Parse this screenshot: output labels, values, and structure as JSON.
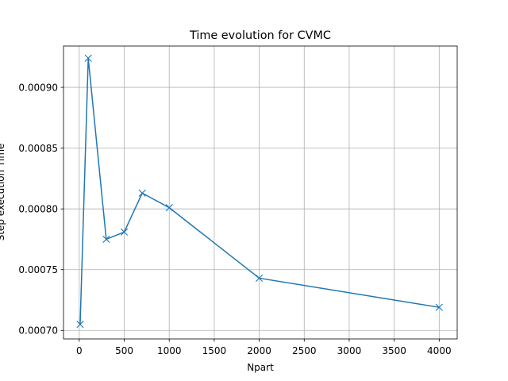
{
  "chart_data": {
    "type": "line",
    "title": "Time evolution for CVMC",
    "xlabel": "Npart",
    "ylabel": "Step execution Time",
    "xlim": [
      -175,
      4200
    ],
    "ylim": [
      0.000693,
      0.000934
    ],
    "xticks": [
      0,
      500,
      1000,
      1500,
      2000,
      2500,
      3000,
      3500,
      4000
    ],
    "xtick_labels": [
      "0",
      "500",
      "1000",
      "1500",
      "2000",
      "2500",
      "3000",
      "3500",
      "4000"
    ],
    "yticks": [
      0.0007,
      0.00075,
      0.0008,
      0.00085,
      0.0009
    ],
    "ytick_labels": [
      "0.00070",
      "0.00075",
      "0.00080",
      "0.00085",
      "0.00090"
    ],
    "grid": true,
    "series": [
      {
        "marker": "x",
        "color": "#1f77b4",
        "x": [
          10,
          100,
          300,
          500,
          700,
          1000,
          2000,
          4000
        ],
        "y": [
          0.000705,
          0.000924,
          0.000775,
          0.000781,
          0.000813,
          0.000801,
          0.000743,
          0.000719
        ]
      }
    ]
  }
}
